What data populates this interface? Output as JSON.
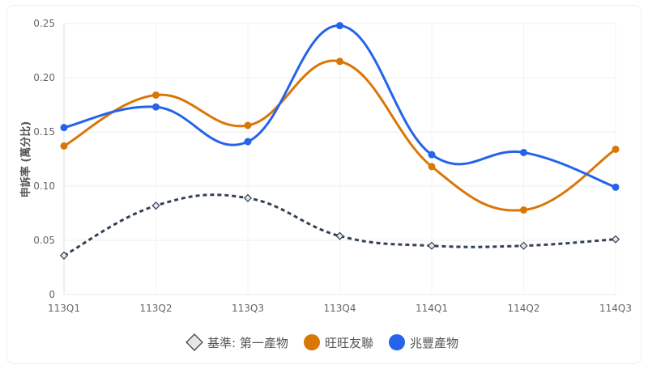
{
  "chart_data": {
    "type": "line",
    "title": "",
    "xlabel": "",
    "ylabel": "申訴率 (萬分比)",
    "ylim": [
      0,
      0.25
    ],
    "yticks": [
      "0",
      "0.05",
      "0.10",
      "0.15",
      "0.20",
      "0.25"
    ],
    "ytick_values": [
      0,
      0.05,
      0.1,
      0.15,
      0.2,
      0.25
    ],
    "categories": [
      "113Q1",
      "113Q2",
      "113Q3",
      "113Q4",
      "114Q1",
      "114Q2",
      "114Q3"
    ],
    "grid": true,
    "legend_position": "bottom",
    "series": [
      {
        "name": "基準: 第一產物",
        "color": "#334155",
        "style": "dashed",
        "marker": "diamond",
        "values": [
          0.036,
          0.082,
          0.089,
          0.054,
          0.045,
          0.045,
          0.051
        ]
      },
      {
        "name": "旺旺友聯",
        "color": "#d97706",
        "style": "solid",
        "marker": "circle",
        "values": [
          0.137,
          0.184,
          0.156,
          0.215,
          0.118,
          0.078,
          0.134
        ]
      },
      {
        "name": "兆豐產物",
        "color": "#2563eb",
        "style": "solid",
        "marker": "circle",
        "values": [
          0.154,
          0.173,
          0.141,
          0.248,
          0.129,
          0.131,
          0.099
        ]
      }
    ]
  }
}
